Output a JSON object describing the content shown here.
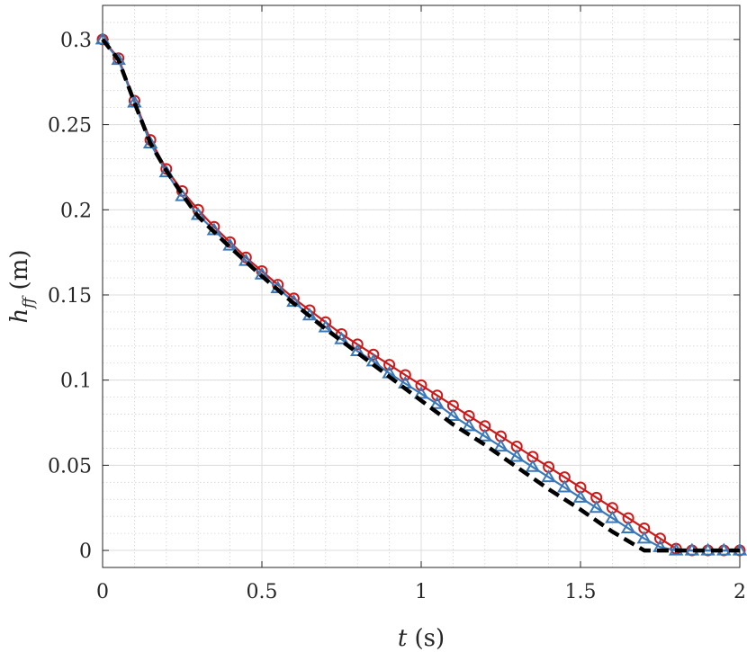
{
  "chart_data": {
    "type": "line",
    "title": "",
    "xlabel": {
      "var": "t",
      "unit": " (s)"
    },
    "ylabel": {
      "var": "h",
      "sub": "ff",
      "unit": " (m)"
    },
    "xlim": [
      0,
      2.0
    ],
    "ylim": [
      -0.01,
      0.32
    ],
    "xticks": [
      0,
      0.5,
      1,
      1.5,
      2
    ],
    "xtick_labels": [
      "0",
      "0.5",
      "1",
      "1.5",
      "2"
    ],
    "yticks": [
      0,
      0.05,
      0.1,
      0.15,
      0.2,
      0.25,
      0.3
    ],
    "ytick_labels": [
      "0",
      "0.05",
      "0.1",
      "0.15",
      "0.2",
      "0.25",
      "0.3"
    ],
    "grid": true,
    "minor_grid": true,
    "series": [
      {
        "style": "dashed-black",
        "color": "#000000",
        "x": [
          0,
          0.05,
          0.1,
          0.15,
          0.2,
          0.25,
          0.3,
          0.4,
          0.5,
          0.6,
          0.7,
          0.8,
          0.9,
          1.0,
          1.1,
          1.2,
          1.3,
          1.4,
          1.5,
          1.6,
          1.7,
          1.8,
          1.85,
          1.9,
          2.0
        ],
        "y": [
          0.3,
          0.288,
          0.263,
          0.239,
          0.223,
          0.209,
          0.196,
          0.178,
          0.161,
          0.145,
          0.13,
          0.116,
          0.102,
          0.088,
          0.074,
          0.062,
          0.049,
          0.036,
          0.024,
          0.011,
          0.0,
          0.0,
          0.0,
          0.0,
          0.0
        ]
      },
      {
        "style": "circle-line",
        "color": "#cc1a1a",
        "marker": "circle",
        "x": [
          0,
          0.05,
          0.1,
          0.15,
          0.2,
          0.25,
          0.3,
          0.35,
          0.4,
          0.45,
          0.5,
          0.55,
          0.6,
          0.65,
          0.7,
          0.75,
          0.8,
          0.85,
          0.9,
          0.95,
          1.0,
          1.05,
          1.1,
          1.15,
          1.2,
          1.25,
          1.3,
          1.35,
          1.4,
          1.45,
          1.5,
          1.55,
          1.6,
          1.65,
          1.7,
          1.75,
          1.8,
          1.85,
          1.9,
          1.95,
          2.0
        ],
        "y": [
          0.3,
          0.289,
          0.264,
          0.241,
          0.224,
          0.211,
          0.2,
          0.19,
          0.181,
          0.172,
          0.164,
          0.156,
          0.148,
          0.141,
          0.134,
          0.127,
          0.121,
          0.115,
          0.109,
          0.103,
          0.097,
          0.091,
          0.085,
          0.079,
          0.073,
          0.067,
          0.061,
          0.055,
          0.049,
          0.043,
          0.037,
          0.031,
          0.025,
          0.019,
          0.013,
          0.007,
          0.001,
          0.0,
          0.0,
          0.0,
          0.0
        ]
      },
      {
        "style": "triangle-line",
        "color": "#3a79b8",
        "marker": "triangle",
        "x": [
          0,
          0.05,
          0.1,
          0.15,
          0.2,
          0.25,
          0.3,
          0.35,
          0.4,
          0.45,
          0.5,
          0.55,
          0.6,
          0.65,
          0.7,
          0.75,
          0.8,
          0.85,
          0.9,
          0.95,
          1.0,
          1.05,
          1.1,
          1.15,
          1.2,
          1.25,
          1.3,
          1.35,
          1.4,
          1.45,
          1.5,
          1.55,
          1.6,
          1.65,
          1.7,
          1.75,
          1.8,
          1.85,
          1.9,
          1.95,
          2.0
        ],
        "y": [
          0.3,
          0.288,
          0.263,
          0.239,
          0.222,
          0.208,
          0.197,
          0.188,
          0.179,
          0.17,
          0.162,
          0.154,
          0.146,
          0.138,
          0.131,
          0.124,
          0.117,
          0.111,
          0.104,
          0.098,
          0.092,
          0.086,
          0.079,
          0.073,
          0.067,
          0.061,
          0.055,
          0.049,
          0.043,
          0.037,
          0.031,
          0.025,
          0.019,
          0.013,
          0.007,
          0.002,
          0.0,
          0.0,
          0.0,
          0.0,
          0.0
        ]
      }
    ]
  }
}
